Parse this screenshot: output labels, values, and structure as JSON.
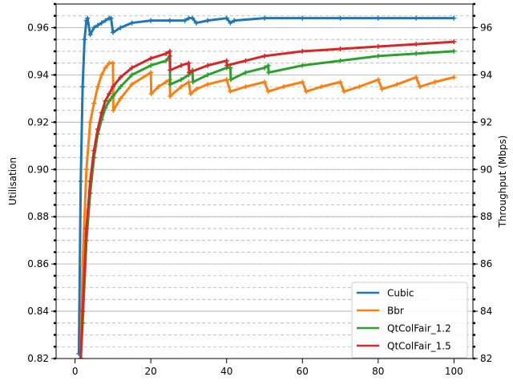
{
  "chart_data": {
    "type": "line",
    "title": "",
    "xlabel": "",
    "ylabel": "Utilisation",
    "y2label": "Throughput (Mbps)",
    "xlim": [
      -5,
      105
    ],
    "ylim": [
      0.82,
      0.97
    ],
    "y2lim": [
      82,
      97
    ],
    "x_ticks": [
      "0",
      "20",
      "40",
      "60",
      "80",
      "100"
    ],
    "y_ticks": [
      "0.82",
      "0.84",
      "0.86",
      "0.88",
      "0.90",
      "0.92",
      "0.94",
      "0.96"
    ],
    "y2_ticks": [
      "82",
      "84",
      "86",
      "88",
      "90",
      "92",
      "94",
      "96"
    ],
    "grid": "horizontal (solid at left-axis major ticks, dashed at right-axis minor ticks)",
    "legend_position": "lower right",
    "series": [
      {
        "name": "Cubic",
        "color": "#1f77b4",
        "x": [
          1.0,
          1.5,
          2.0,
          2.5,
          3.0,
          3.3,
          4,
          5,
          6,
          7,
          8,
          9,
          9.5,
          10,
          12,
          15,
          20,
          25,
          29,
          30,
          31,
          32,
          35,
          40,
          41,
          42,
          50,
          60,
          70,
          80,
          90,
          100
        ],
        "values": [
          0.822,
          0.895,
          0.935,
          0.955,
          0.963,
          0.964,
          0.957,
          0.96,
          0.961,
          0.962,
          0.963,
          0.964,
          0.964,
          0.958,
          0.96,
          0.962,
          0.963,
          0.963,
          0.963,
          0.964,
          0.964,
          0.962,
          0.963,
          0.964,
          0.962,
          0.963,
          0.964,
          0.964,
          0.964,
          0.964,
          0.964,
          0.964
        ]
      },
      {
        "name": "Bbr",
        "color": "#ff7f0e",
        "x": [
          1.5,
          2,
          3,
          4,
          5,
          6,
          7,
          8,
          9,
          10,
          10.1,
          12,
          15,
          20,
          20.1,
          22,
          24,
          25,
          25.1,
          28,
          30,
          30.5,
          32,
          35,
          40,
          41,
          45,
          50,
          51,
          55,
          60,
          61,
          65,
          70,
          71,
          75,
          80,
          81,
          85,
          90,
          91,
          95,
          100
        ],
        "values": [
          0.82,
          0.86,
          0.9,
          0.92,
          0.928,
          0.935,
          0.94,
          0.943,
          0.945,
          0.945,
          0.925,
          0.93,
          0.936,
          0.941,
          0.932,
          0.935,
          0.937,
          0.938,
          0.931,
          0.935,
          0.937,
          0.932,
          0.934,
          0.936,
          0.938,
          0.933,
          0.935,
          0.937,
          0.933,
          0.935,
          0.937,
          0.933,
          0.935,
          0.937,
          0.933,
          0.935,
          0.938,
          0.934,
          0.936,
          0.939,
          0.935,
          0.937,
          0.939
        ]
      },
      {
        "name": "QtColFair_1.2",
        "color": "#2ca02c",
        "x": [
          1.5,
          2,
          3,
          4,
          5,
          6,
          7,
          8,
          9,
          10,
          12,
          15,
          20,
          24,
          25,
          25.1,
          28,
          30,
          31,
          31.1,
          35,
          40,
          41,
          41.1,
          45,
          50,
          51,
          51.1,
          60,
          70,
          80,
          90,
          100
        ],
        "values": [
          0.82,
          0.835,
          0.87,
          0.89,
          0.905,
          0.915,
          0.921,
          0.926,
          0.929,
          0.931,
          0.935,
          0.94,
          0.944,
          0.946,
          0.948,
          0.936,
          0.938,
          0.94,
          0.942,
          0.937,
          0.94,
          0.943,
          0.943,
          0.938,
          0.941,
          0.943,
          0.944,
          0.941,
          0.944,
          0.946,
          0.948,
          0.949,
          0.95
        ]
      },
      {
        "name": "QtColFair_1.5",
        "color": "#d62728",
        "x": [
          1.5,
          2,
          3,
          4,
          5,
          6,
          7,
          8,
          9,
          10,
          12,
          15,
          20,
          24,
          25,
          25.1,
          28,
          30,
          30.1,
          35,
          40,
          40.1,
          45,
          50,
          60,
          70,
          80,
          90,
          100
        ],
        "values": [
          0.82,
          0.84,
          0.875,
          0.895,
          0.908,
          0.917,
          0.924,
          0.929,
          0.932,
          0.935,
          0.939,
          0.943,
          0.947,
          0.949,
          0.95,
          0.942,
          0.944,
          0.945,
          0.941,
          0.944,
          0.946,
          0.944,
          0.946,
          0.948,
          0.95,
          0.951,
          0.952,
          0.953,
          0.954
        ]
      }
    ]
  }
}
